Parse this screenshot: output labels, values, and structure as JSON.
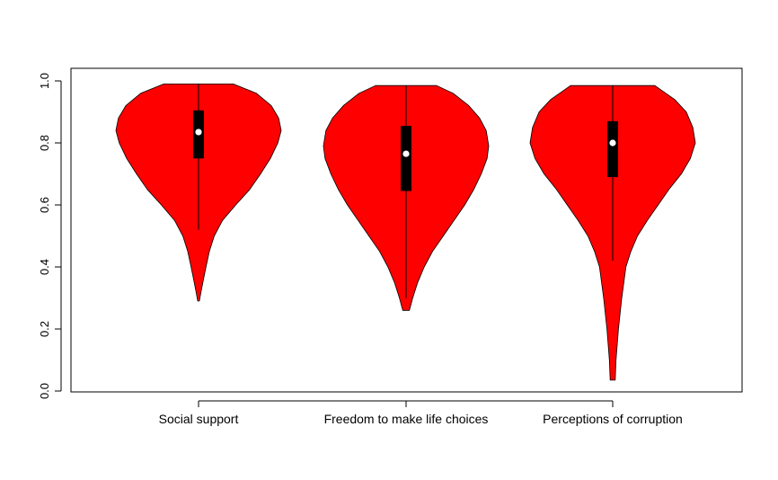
{
  "chart_data": {
    "type": "violin",
    "title": "",
    "xlabel": "",
    "ylabel": "",
    "ylim": [
      0.0,
      1.0
    ],
    "y_ticks": [
      "0.0",
      "0.2",
      "0.4",
      "0.6",
      "0.8",
      "1.0"
    ],
    "grid": false,
    "fill_color": "#ff0000",
    "categories": [
      "Social support",
      "Freedom to make life choices",
      "Perceptions of corruption"
    ],
    "series": [
      {
        "name": "Social support",
        "min": 0.29,
        "q1": 0.75,
        "median": 0.835,
        "q3": 0.905,
        "max": 0.99,
        "whisker_low": 0.52,
        "whisker_high": 0.99,
        "density": [
          [
            0.29,
            0.01
          ],
          [
            0.32,
            0.03
          ],
          [
            0.36,
            0.06
          ],
          [
            0.4,
            0.09
          ],
          [
            0.45,
            0.13
          ],
          [
            0.5,
            0.19
          ],
          [
            0.55,
            0.29
          ],
          [
            0.6,
            0.45
          ],
          [
            0.65,
            0.62
          ],
          [
            0.7,
            0.75
          ],
          [
            0.75,
            0.87
          ],
          [
            0.8,
            0.96
          ],
          [
            0.84,
            1.0
          ],
          [
            0.88,
            0.97
          ],
          [
            0.92,
            0.88
          ],
          [
            0.96,
            0.7
          ],
          [
            0.99,
            0.42
          ]
        ]
      },
      {
        "name": "Freedom to make life choices",
        "min": 0.26,
        "q1": 0.645,
        "median": 0.765,
        "q3": 0.855,
        "max": 0.985,
        "whisker_low": 0.3,
        "whisker_high": 0.985,
        "density": [
          [
            0.26,
            0.04
          ],
          [
            0.3,
            0.08
          ],
          [
            0.35,
            0.14
          ],
          [
            0.4,
            0.22
          ],
          [
            0.45,
            0.32
          ],
          [
            0.5,
            0.45
          ],
          [
            0.55,
            0.58
          ],
          [
            0.6,
            0.71
          ],
          [
            0.65,
            0.82
          ],
          [
            0.7,
            0.91
          ],
          [
            0.75,
            0.98
          ],
          [
            0.79,
            1.0
          ],
          [
            0.84,
            0.97
          ],
          [
            0.88,
            0.89
          ],
          [
            0.92,
            0.76
          ],
          [
            0.96,
            0.57
          ],
          [
            0.985,
            0.37
          ]
        ]
      },
      {
        "name": "Perceptions of corruption",
        "min": 0.035,
        "q1": 0.69,
        "median": 0.8,
        "q3": 0.87,
        "max": 0.985,
        "whisker_low": 0.42,
        "whisker_high": 0.985,
        "density": [
          [
            0.035,
            0.03
          ],
          [
            0.1,
            0.04
          ],
          [
            0.2,
            0.07
          ],
          [
            0.3,
            0.11
          ],
          [
            0.4,
            0.16
          ],
          [
            0.45,
            0.22
          ],
          [
            0.5,
            0.3
          ],
          [
            0.55,
            0.42
          ],
          [
            0.6,
            0.55
          ],
          [
            0.65,
            0.68
          ],
          [
            0.7,
            0.83
          ],
          [
            0.75,
            0.94
          ],
          [
            0.8,
            1.0
          ],
          [
            0.85,
            0.97
          ],
          [
            0.9,
            0.89
          ],
          [
            0.94,
            0.75
          ],
          [
            0.985,
            0.51
          ]
        ]
      }
    ]
  }
}
